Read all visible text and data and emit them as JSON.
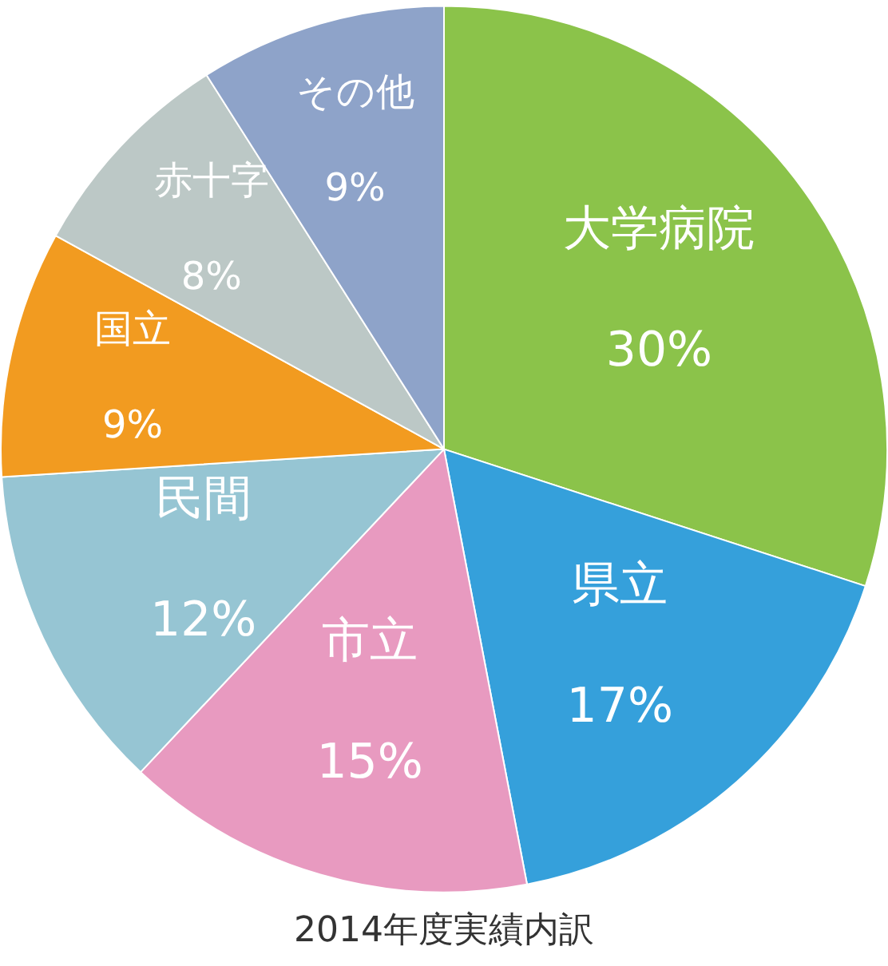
{
  "chart_data": {
    "type": "pie",
    "title": "2014年度実績内訳",
    "categories": [
      "大学病院",
      "県立",
      "市立",
      "民間",
      "国立",
      "赤十字",
      "その他"
    ],
    "values": [
      30,
      17,
      15,
      12,
      9,
      8,
      9
    ],
    "value_labels": [
      "30%",
      "17%",
      "15%",
      "12%",
      "9%",
      "8%",
      "9%"
    ],
    "colors": [
      "#8bc34a",
      "#35a0db",
      "#e89ac0",
      "#96c5d3",
      "#f29b20",
      "#bcc8c6",
      "#8ea3c9"
    ],
    "legend": false
  }
}
